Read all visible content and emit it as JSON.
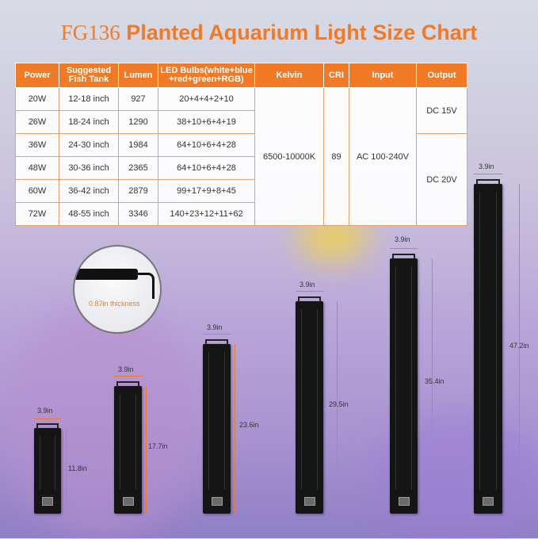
{
  "title": {
    "model": "FG136",
    "text": "Planted Aquarium Light Size Chart"
  },
  "table": {
    "headers": {
      "power": "Power",
      "fish_tank": "Suggested Fish Tank",
      "lumen": "Lumen",
      "led": "LED Bulbs(white+blue +red+green+RGB)",
      "kelvin": "Kelvin",
      "cri": "CRI",
      "input": "Input",
      "output": "Output"
    },
    "rows": [
      {
        "power": "20W",
        "tank": "12-18 inch",
        "lumen": "927",
        "led": "20+4+4+2+10"
      },
      {
        "power": "26W",
        "tank": "18-24 inch",
        "lumen": "1290",
        "led": "38+10+6+4+19"
      },
      {
        "power": "36W",
        "tank": "24-30 inch",
        "lumen": "1984",
        "led": "64+10+6+4+28"
      },
      {
        "power": "48W",
        "tank": "30-36 inch",
        "lumen": "2365",
        "led": "64+10+6+4+28"
      },
      {
        "power": "60W",
        "tank": "36-42 inch",
        "lumen": "2879",
        "led": "99+17+9+8+45"
      },
      {
        "power": "72W",
        "tank": "48-55 inch",
        "lumen": "3346",
        "led": "140+23+12+11+62"
      }
    ],
    "kelvin": "6500-10000K",
    "cri": "89",
    "input": "AC 100-240V",
    "output_1": "DC 15V",
    "output_2": "DC 20V"
  },
  "zoom": {
    "thickness": "0.87in thickness"
  },
  "fixtures": [
    {
      "width": "3.9in",
      "length": "11.8in"
    },
    {
      "width": "3.9in",
      "length": "17.7in"
    },
    {
      "width": "3.9in",
      "length": "23.6in"
    },
    {
      "width": "3.9in",
      "length": "29.5in"
    },
    {
      "width": "3.9in",
      "length": "35.4in"
    },
    {
      "width": "3.9in",
      "length": "47.2in"
    }
  ],
  "colors": {
    "accent": "#f07a25",
    "fixture": "#151515"
  }
}
